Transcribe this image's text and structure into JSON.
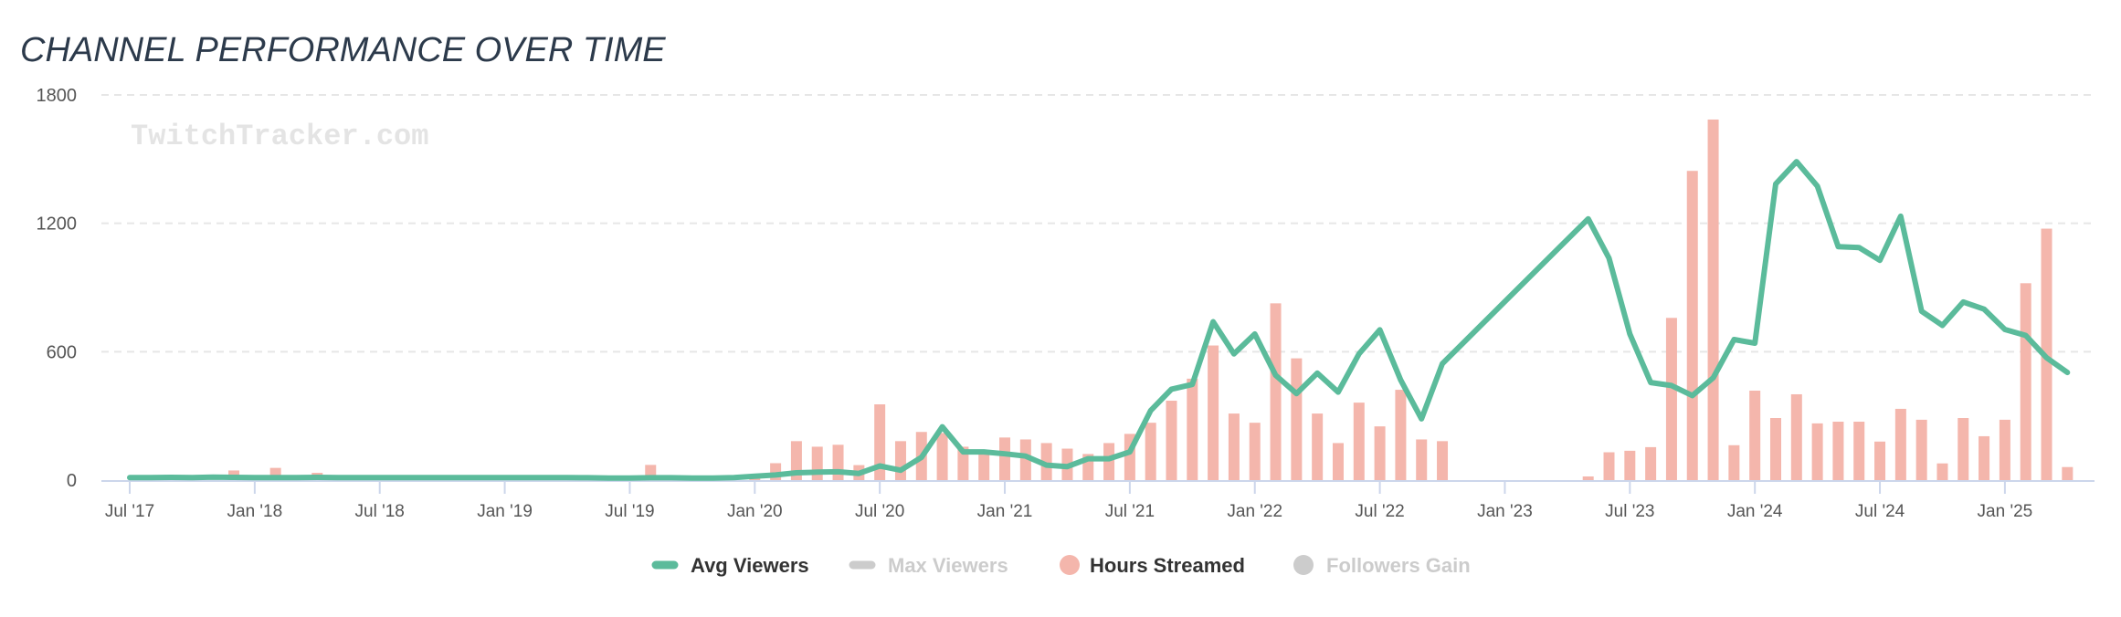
{
  "chart_data": {
    "type": "bar+line",
    "title": "CHANNEL PERFORMANCE OVER TIME",
    "watermark": "TwitchTracker.com",
    "x_start": "Jul 2017",
    "x_interval": "month",
    "x_tick_labels": [
      "Jul '17",
      "Jan '18",
      "Jul '18",
      "Jan '19",
      "Jul '19",
      "Jan '20",
      "Jul '20",
      "Jan '21",
      "Jul '21",
      "Jan '22",
      "Jul '22",
      "Jan '23",
      "Jul '23",
      "Jan '24",
      "Jul '24",
      "Jan '25"
    ],
    "y_tick_labels": [
      "0",
      "600",
      "1200",
      "1800"
    ],
    "ylim": [
      0,
      1800
    ],
    "grid": true,
    "legend_position": "bottom-center",
    "series": [
      {
        "name": "Avg Viewers",
        "type": "line",
        "color": "#5bbb9b",
        "visible": true,
        "values": [
          12,
          12,
          13,
          12,
          14,
          13,
          12,
          12,
          12,
          13,
          12,
          12,
          12,
          12,
          12,
          12,
          12,
          12,
          12,
          12,
          12,
          12,
          11,
          10,
          10,
          11,
          11,
          10,
          10,
          12,
          18,
          24,
          34,
          37,
          39,
          31,
          66,
          46,
          106,
          249,
          132,
          132,
          123,
          112,
          70,
          63,
          100,
          100,
          132,
          325,
          425,
          447,
          740,
          590,
          683,
          490,
          404,
          500,
          411,
          590,
          702,
          468,
          286,
          544,
          null,
          null,
          null,
          null,
          null,
          null,
          1221,
          1037,
          683,
          456,
          442,
          395,
          478,
          657,
          640,
          1384,
          1488,
          1374,
          1091,
          1087,
          1027,
          1233,
          789,
          723,
          832,
          799,
          704,
          676,
          572,
          503
        ]
      },
      {
        "name": "Max Viewers",
        "type": "line",
        "color": "#cccccc",
        "visible": false,
        "values": []
      },
      {
        "name": "Hours Streamed",
        "type": "bar",
        "color": "#f4b6ac",
        "visible": true,
        "values": [
          0,
          0,
          0,
          0,
          0,
          45,
          0,
          57,
          0,
          34,
          0,
          0,
          0,
          0,
          0,
          0,
          0,
          0,
          0,
          0,
          0,
          0,
          0,
          0,
          0,
          71,
          0,
          0,
          0,
          0,
          10,
          79,
          182,
          156,
          165,
          70,
          354,
          182,
          225,
          220,
          156,
          132,
          199,
          190,
          173,
          147,
          122,
          173,
          216,
          268,
          371,
          474,
          629,
          311,
          268,
          826,
          569,
          311,
          173,
          362,
          251,
          422,
          190,
          182,
          null,
          null,
          null,
          null,
          null,
          null,
          17,
          130,
          137,
          154,
          758,
          1445,
          1685,
          163,
          418,
          290,
          401,
          265,
          273,
          273,
          180,
          333,
          282,
          78,
          290,
          205,
          282,
          920,
          1175,
          61
        ]
      },
      {
        "name": "Followers Gain",
        "type": "bar",
        "color": "#cccccc",
        "visible": false,
        "values": []
      }
    ]
  }
}
